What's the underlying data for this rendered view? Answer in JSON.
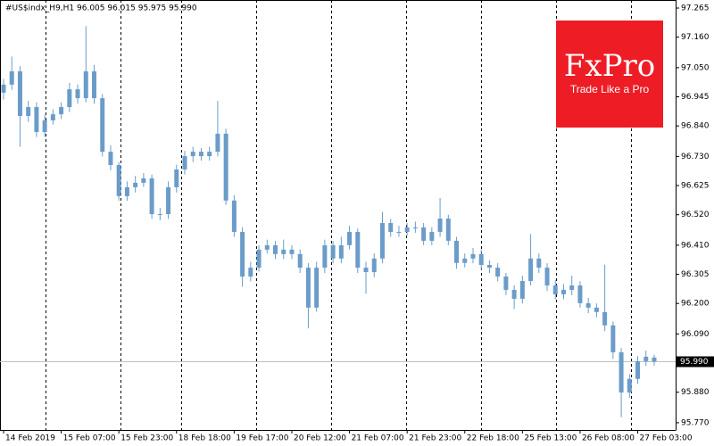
{
  "chart_data": {
    "type": "candlestick",
    "title": "#US$indx_H9,H1  96.005 96.015 95.975 95.990",
    "watermark": {
      "brand": "FxPro",
      "tagline": "Trade Like a Pro"
    },
    "color": "#6b9cc9",
    "categories": [
      "14 Feb 2019",
      null,
      null,
      null,
      null,
      null,
      null,
      "15 Feb 07:00",
      null,
      null,
      null,
      null,
      null,
      null,
      "15 Feb 23:00",
      null,
      null,
      null,
      null,
      null,
      null,
      "18 Feb 18:00",
      null,
      null,
      null,
      null,
      null,
      null,
      "19 Feb 17:00",
      null,
      null,
      null,
      null,
      null,
      null,
      "20 Feb 12:00",
      null,
      null,
      null,
      null,
      null,
      null,
      "21 Feb 07:00",
      null,
      null,
      null,
      null,
      null,
      null,
      "21 Feb 23:00",
      null,
      null,
      null,
      null,
      null,
      null,
      "22 Feb 18:00",
      null,
      null,
      null,
      null,
      null,
      null,
      "25 Feb 13:00",
      null,
      null,
      null,
      null,
      null,
      null,
      "26 Feb 08:00",
      null,
      null,
      null,
      null,
      null,
      null,
      "27 Feb 03:00",
      null,
      null
    ],
    "open": [
      96.96,
      96.989,
      97.037,
      96.876,
      96.908,
      96.818,
      96.86,
      96.882,
      96.908,
      96.972,
      96.94,
      97.037,
      96.94,
      96.747,
      96.699,
      96.587,
      96.619,
      96.635,
      96.651,
      96.522,
      96.522,
      96.619,
      96.683,
      96.731,
      96.747,
      96.731,
      96.747,
      96.812,
      96.571,
      96.458,
      96.297,
      96.329,
      96.394,
      96.41,
      96.378,
      96.394,
      96.378,
      96.329,
      96.185,
      96.329,
      96.41,
      96.362,
      96.41,
      96.458,
      96.329,
      96.313,
      96.362,
      96.49,
      96.458,
      96.458,
      96.474,
      96.474,
      96.426,
      96.458,
      96.506,
      96.426,
      96.346,
      96.362,
      96.378,
      96.339,
      96.329,
      96.297,
      96.249,
      96.217,
      96.281,
      96.362,
      96.329,
      96.265,
      96.233,
      96.249,
      96.265,
      96.201,
      96.185,
      96.169,
      96.121,
      96.024,
      95.879,
      95.928,
      95.992,
      96.005
    ],
    "high": [
      97.01,
      97.09,
      97.055,
      96.93,
      96.925,
      96.88,
      96.9,
      96.925,
      96.995,
      96.99,
      97.2,
      97.06,
      96.955,
      96.77,
      96.71,
      96.64,
      96.66,
      96.67,
      96.665,
      96.545,
      96.64,
      96.7,
      96.75,
      96.765,
      96.76,
      96.765,
      96.93,
      96.83,
      96.59,
      96.475,
      96.35,
      96.41,
      96.43,
      96.425,
      96.43,
      96.41,
      96.395,
      96.345,
      96.35,
      96.43,
      96.425,
      96.44,
      96.48,
      96.47,
      96.35,
      96.38,
      96.53,
      96.505,
      96.48,
      96.49,
      96.495,
      96.49,
      96.475,
      96.58,
      96.52,
      96.44,
      96.38,
      96.4,
      96.395,
      96.355,
      96.345,
      96.31,
      96.265,
      96.3,
      96.45,
      96.38,
      96.345,
      96.285,
      96.27,
      96.3,
      96.28,
      96.22,
      96.2,
      96.34,
      96.135,
      96.04,
      95.945,
      96.01,
      96.03,
      96.015
    ],
    "low": [
      96.935,
      96.97,
      96.765,
      96.855,
      96.8,
      96.8,
      96.845,
      96.865,
      96.89,
      96.92,
      96.925,
      96.92,
      96.73,
      96.68,
      96.57,
      96.57,
      96.6,
      96.62,
      96.505,
      96.5,
      96.505,
      96.6,
      96.665,
      96.71,
      96.715,
      96.715,
      96.73,
      96.555,
      96.44,
      96.26,
      96.28,
      96.315,
      96.38,
      96.36,
      96.36,
      96.36,
      96.31,
      96.11,
      96.17,
      96.31,
      96.345,
      96.345,
      96.395,
      96.31,
      96.235,
      96.295,
      96.345,
      96.44,
      96.44,
      96.445,
      96.455,
      96.41,
      96.41,
      96.44,
      96.41,
      96.325,
      96.33,
      96.345,
      96.32,
      96.31,
      96.28,
      96.23,
      96.18,
      96.2,
      96.265,
      96.31,
      96.245,
      96.215,
      96.215,
      96.23,
      96.185,
      96.165,
      96.15,
      96.1,
      96.0,
      95.79,
      95.86,
      95.91,
      95.975,
      95.975
    ],
    "close": [
      96.989,
      97.037,
      96.876,
      96.908,
      96.818,
      96.86,
      96.882,
      96.908,
      96.972,
      96.94,
      97.037,
      96.94,
      96.747,
      96.699,
      96.587,
      96.619,
      96.635,
      96.651,
      96.522,
      96.522,
      96.619,
      96.683,
      96.731,
      96.747,
      96.731,
      96.747,
      96.812,
      96.571,
      96.458,
      96.297,
      96.329,
      96.394,
      96.41,
      96.378,
      96.394,
      96.378,
      96.329,
      96.185,
      96.329,
      96.41,
      96.362,
      96.41,
      96.458,
      96.329,
      96.313,
      96.362,
      96.49,
      96.458,
      96.458,
      96.474,
      96.474,
      96.426,
      96.458,
      96.506,
      96.426,
      96.346,
      96.362,
      96.378,
      96.339,
      96.329,
      96.297,
      96.249,
      96.217,
      96.281,
      96.362,
      96.329,
      96.265,
      96.233,
      96.249,
      96.265,
      96.201,
      96.185,
      96.169,
      96.121,
      96.024,
      95.879,
      95.928,
      95.992,
      96.008,
      95.99
    ],
    "current_price": {
      "value": 95.99,
      "label": "95.990"
    },
    "ylim": [
      95.744,
      97.294
    ],
    "yticks": [
      {
        "value": 97.265,
        "label": "97.265"
      },
      {
        "value": 97.16,
        "label": "97.160"
      },
      {
        "value": 97.05,
        "label": "97.050"
      },
      {
        "value": 96.945,
        "label": "96.945"
      },
      {
        "value": 96.84,
        "label": "96.840"
      },
      {
        "value": 96.73,
        "label": "96.730"
      },
      {
        "value": 96.625,
        "label": "96.625"
      },
      {
        "value": 96.52,
        "label": "96.520"
      },
      {
        "value": 96.41,
        "label": "96.410"
      },
      {
        "value": 96.305,
        "label": "96.305"
      },
      {
        "value": 96.2,
        "label": "96.200"
      },
      {
        "value": 96.09,
        "label": "96.090"
      },
      {
        "value": 95.88,
        "label": "95.880"
      },
      {
        "value": 95.77,
        "label": "95.770"
      }
    ]
  }
}
